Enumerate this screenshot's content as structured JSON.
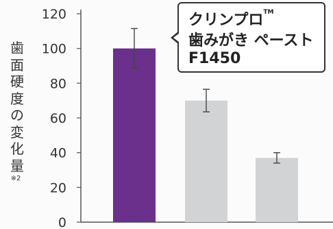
{
  "chart_data": {
    "type": "bar",
    "ylabel": "歯面硬度の変化量",
    "ylabel_note": "※2",
    "ylim": [
      0,
      120
    ],
    "yticks": [
      0,
      20,
      40,
      60,
      80,
      100,
      120
    ],
    "categories": [
      "",
      "",
      ""
    ],
    "values": [
      100,
      70,
      37
    ],
    "errors": [
      11.5,
      6.5,
      3
    ],
    "bar_colors": [
      "#6b2f8c",
      "#d2d3d4",
      "#d2d3d4"
    ],
    "annotation": {
      "line1": "クリンプロ",
      "tm": "TM",
      "line2": "歯みがき ペースト",
      "line3": "F1450"
    },
    "grid": false
  }
}
